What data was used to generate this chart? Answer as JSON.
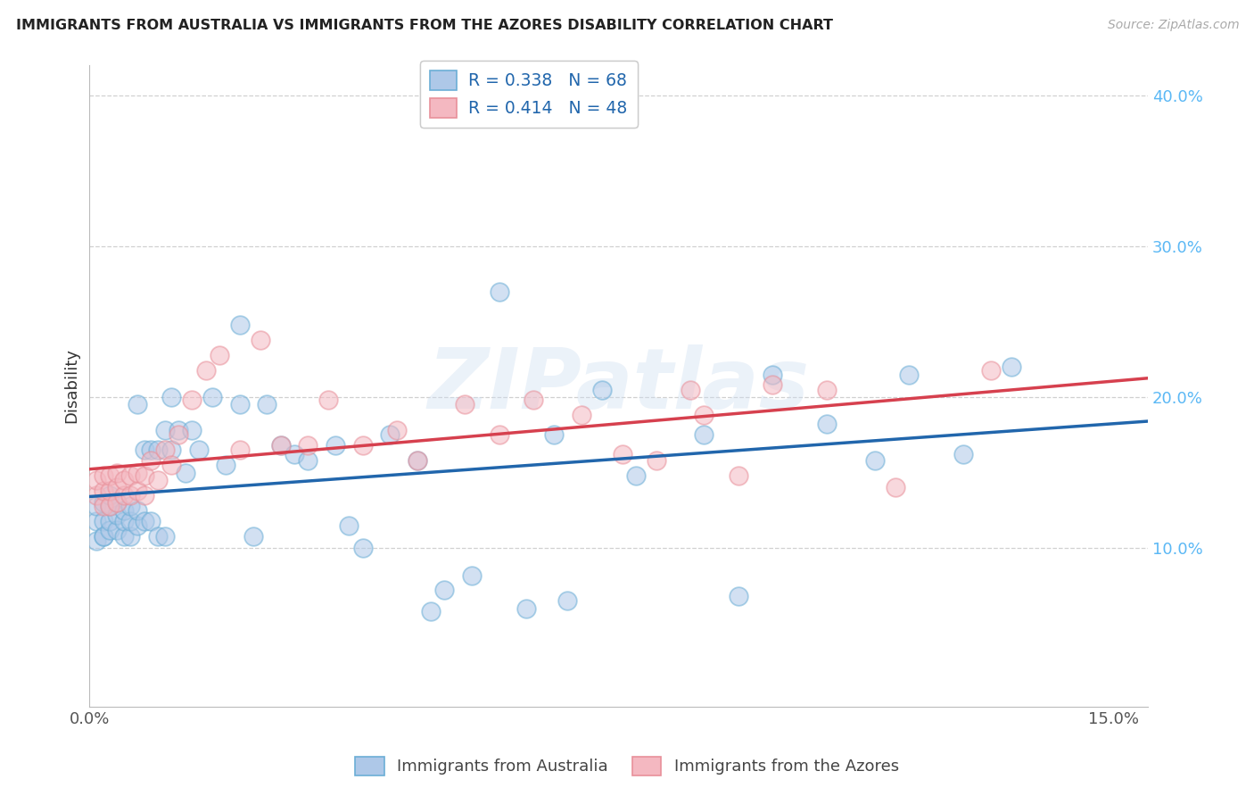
{
  "title": "IMMIGRANTS FROM AUSTRALIA VS IMMIGRANTS FROM THE AZORES DISABILITY CORRELATION CHART",
  "source": "Source: ZipAtlas.com",
  "ylabel": "Disability",
  "xlim": [
    0.0,
    0.155
  ],
  "ylim": [
    -0.005,
    0.42
  ],
  "yticks": [
    0.1,
    0.2,
    0.3,
    0.4
  ],
  "ytick_labels": [
    "10.0%",
    "20.0%",
    "30.0%",
    "40.0%"
  ],
  "xtick_positions": [
    0.0,
    0.025,
    0.05,
    0.075,
    0.1,
    0.125,
    0.15
  ],
  "xtick_labels": [
    "0.0%",
    "",
    "",
    "",
    "",
    "",
    "15.0%"
  ],
  "blue_color": "#aec8e8",
  "blue_edge_color": "#6baed6",
  "pink_color": "#f4b8c1",
  "pink_edge_color": "#e8909a",
  "blue_line_color": "#2166ac",
  "pink_line_color": "#d6404e",
  "legend_text_color": "#2166ac",
  "legend1_label": "R = 0.338   N = 68",
  "legend2_label": "R = 0.414   N = 48",
  "legend1_series": "Immigrants from Australia",
  "legend2_series": "Immigrants from the Azores",
  "watermark": "ZIPatlas",
  "blue_x": [
    0.001,
    0.001,
    0.001,
    0.002,
    0.002,
    0.002,
    0.002,
    0.003,
    0.003,
    0.003,
    0.003,
    0.004,
    0.004,
    0.004,
    0.005,
    0.005,
    0.005,
    0.006,
    0.006,
    0.006,
    0.007,
    0.007,
    0.007,
    0.008,
    0.008,
    0.009,
    0.009,
    0.01,
    0.01,
    0.011,
    0.011,
    0.012,
    0.012,
    0.013,
    0.014,
    0.015,
    0.016,
    0.018,
    0.02,
    0.022,
    0.024,
    0.026,
    0.028,
    0.03,
    0.032,
    0.036,
    0.04,
    0.044,
    0.048,
    0.052,
    0.056,
    0.06,
    0.064,
    0.068,
    0.075,
    0.08,
    0.09,
    0.095,
    0.1,
    0.108,
    0.115,
    0.12,
    0.128,
    0.135,
    0.038,
    0.022,
    0.05,
    0.07
  ],
  "blue_y": [
    0.105,
    0.118,
    0.128,
    0.108,
    0.118,
    0.13,
    0.108,
    0.112,
    0.118,
    0.128,
    0.135,
    0.112,
    0.122,
    0.13,
    0.108,
    0.118,
    0.125,
    0.108,
    0.118,
    0.128,
    0.115,
    0.125,
    0.195,
    0.118,
    0.165,
    0.118,
    0.165,
    0.108,
    0.165,
    0.108,
    0.178,
    0.165,
    0.2,
    0.178,
    0.15,
    0.178,
    0.165,
    0.2,
    0.155,
    0.195,
    0.108,
    0.195,
    0.168,
    0.162,
    0.158,
    0.168,
    0.1,
    0.175,
    0.158,
    0.072,
    0.082,
    0.27,
    0.06,
    0.175,
    0.205,
    0.148,
    0.175,
    0.068,
    0.215,
    0.182,
    0.158,
    0.215,
    0.162,
    0.22,
    0.115,
    0.248,
    0.058,
    0.065
  ],
  "pink_x": [
    0.001,
    0.001,
    0.002,
    0.002,
    0.002,
    0.003,
    0.003,
    0.003,
    0.004,
    0.004,
    0.004,
    0.005,
    0.005,
    0.006,
    0.006,
    0.007,
    0.007,
    0.008,
    0.008,
    0.009,
    0.01,
    0.011,
    0.012,
    0.013,
    0.015,
    0.017,
    0.019,
    0.022,
    0.025,
    0.028,
    0.032,
    0.035,
    0.04,
    0.045,
    0.048,
    0.055,
    0.06,
    0.065,
    0.072,
    0.078,
    0.083,
    0.088,
    0.09,
    0.095,
    0.1,
    0.108,
    0.118,
    0.132
  ],
  "pink_y": [
    0.135,
    0.145,
    0.128,
    0.138,
    0.148,
    0.128,
    0.138,
    0.148,
    0.13,
    0.14,
    0.15,
    0.135,
    0.145,
    0.135,
    0.148,
    0.138,
    0.15,
    0.135,
    0.148,
    0.158,
    0.145,
    0.165,
    0.155,
    0.175,
    0.198,
    0.218,
    0.228,
    0.165,
    0.238,
    0.168,
    0.168,
    0.198,
    0.168,
    0.178,
    0.158,
    0.195,
    0.175,
    0.198,
    0.188,
    0.162,
    0.158,
    0.205,
    0.188,
    0.148,
    0.208,
    0.205,
    0.14,
    0.218
  ]
}
